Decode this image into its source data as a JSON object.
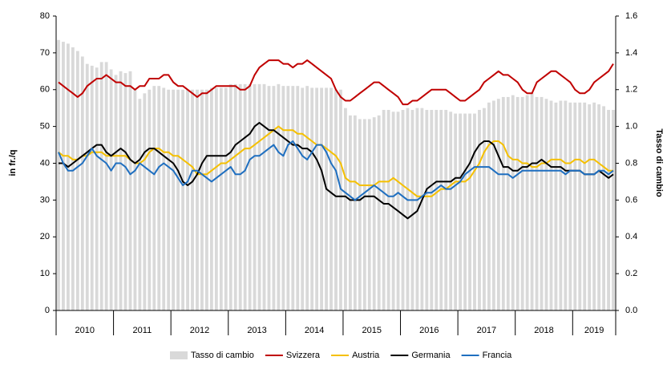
{
  "chart_data": {
    "type": "bar-line",
    "y_label": "in fr./q",
    "y2_label": "Tasso di cambio",
    "years": [
      "2010",
      "2011",
      "2012",
      "2013",
      "2014",
      "2015",
      "2016",
      "2017",
      "2018",
      "2019"
    ],
    "months_per_year": 12,
    "ylim": [
      0,
      80
    ],
    "yticks": [
      0,
      10,
      20,
      30,
      40,
      50,
      60,
      70,
      80
    ],
    "y2lim": [
      0,
      1.6
    ],
    "y2ticks": [
      {
        "value": 0,
        "label": "0.0"
      },
      0.2,
      0.4,
      0.6,
      0.8,
      {
        "value": 1,
        "label": "1.0"
      },
      1.2,
      1.4,
      1.6
    ],
    "series": [
      {
        "name": "Tasso di cambio",
        "kind": "bar",
        "axis": "y2",
        "color": "#d9d9d9",
        "values": [
          1.47,
          1.46,
          1.45,
          1.43,
          1.41,
          1.38,
          1.34,
          1.33,
          1.32,
          1.35,
          1.35,
          1.31,
          1.28,
          1.3,
          1.29,
          1.3,
          1.2,
          1.15,
          1.18,
          1.2,
          1.22,
          1.22,
          1.21,
          1.2,
          1.2,
          1.2,
          1.2,
          1.2,
          1.2,
          1.2,
          1.2,
          1.2,
          1.21,
          1.21,
          1.21,
          1.21,
          1.23,
          1.23,
          1.23,
          1.23,
          1.23,
          1.23,
          1.23,
          1.23,
          1.22,
          1.22,
          1.23,
          1.22,
          1.22,
          1.22,
          1.22,
          1.21,
          1.22,
          1.21,
          1.21,
          1.21,
          1.21,
          1.21,
          1.2,
          1.2,
          1.1,
          1.06,
          1.06,
          1.04,
          1.04,
          1.04,
          1.05,
          1.06,
          1.09,
          1.09,
          1.08,
          1.08,
          1.09,
          1.1,
          1.09,
          1.1,
          1.1,
          1.09,
          1.09,
          1.09,
          1.09,
          1.09,
          1.08,
          1.07,
          1.07,
          1.07,
          1.07,
          1.07,
          1.09,
          1.1,
          1.13,
          1.14,
          1.15,
          1.16,
          1.16,
          1.17,
          1.16,
          1.16,
          1.17,
          1.18,
          1.16,
          1.16,
          1.15,
          1.14,
          1.13,
          1.14,
          1.14,
          1.13,
          1.13,
          1.13,
          1.13,
          1.12,
          1.13,
          1.12,
          1.11,
          1.09,
          1.09
        ]
      },
      {
        "name": "Svizzera",
        "kind": "line",
        "color": "#c00000",
        "values": [
          62,
          61,
          60,
          59,
          58,
          59,
          61,
          62,
          63,
          63,
          64,
          63,
          62,
          62,
          61,
          61,
          60,
          61,
          61,
          63,
          63,
          63,
          64,
          64,
          62,
          61,
          61,
          60,
          59,
          58,
          59,
          59,
          60,
          61,
          61,
          61,
          61,
          61,
          60,
          60,
          61,
          64,
          66,
          67,
          68,
          68,
          68,
          67,
          67,
          66,
          67,
          67,
          68,
          67,
          66,
          65,
          64,
          63,
          60,
          58,
          57,
          57,
          58,
          59,
          60,
          61,
          62,
          62,
          61,
          60,
          59,
          58,
          56,
          56,
          57,
          57,
          58,
          59,
          60,
          60,
          60,
          60,
          59,
          58,
          57,
          57,
          58,
          59,
          60,
          62,
          63,
          64,
          65,
          64,
          64,
          63,
          62,
          60,
          59,
          59,
          62,
          63,
          64,
          65,
          65,
          64,
          63,
          62,
          60,
          59,
          59,
          60,
          62,
          63,
          64,
          65,
          67
        ]
      },
      {
        "name": "Austria",
        "kind": "line",
        "color": "#f5c000",
        "values": [
          43,
          42,
          42,
          41,
          41,
          42,
          42,
          43,
          43,
          43,
          42,
          42,
          42,
          42,
          42,
          41,
          40,
          40,
          41,
          43,
          44,
          44,
          43,
          43,
          42,
          42,
          41,
          40,
          39,
          37,
          37,
          37,
          38,
          39,
          40,
          40,
          41,
          42,
          43,
          44,
          44,
          45,
          46,
          47,
          48,
          49,
          50,
          49,
          49,
          49,
          48,
          48,
          47,
          46,
          45,
          45,
          44,
          43,
          42,
          40,
          36,
          35,
          35,
          34,
          34,
          34,
          34,
          35,
          35,
          35,
          36,
          35,
          34,
          33,
          32,
          31,
          31,
          31,
          31,
          32,
          33,
          33,
          34,
          35,
          35,
          35,
          36,
          38,
          40,
          43,
          45,
          46,
          46,
          45,
          42,
          41,
          41,
          40,
          40,
          39,
          39,
          40,
          40,
          41,
          41,
          41,
          40,
          40,
          41,
          41,
          40,
          41,
          41,
          40,
          39,
          38,
          38
        ]
      },
      {
        "name": "Germania",
        "kind": "line",
        "color": "#000000",
        "values": [
          40,
          40,
          39,
          40,
          41,
          42,
          43,
          44,
          45,
          45,
          43,
          42,
          43,
          44,
          43,
          41,
          40,
          41,
          43,
          44,
          44,
          43,
          42,
          41,
          40,
          38,
          35,
          34,
          35,
          37,
          40,
          42,
          42,
          42,
          42,
          42,
          43,
          45,
          46,
          47,
          48,
          50,
          51,
          50,
          49,
          49,
          48,
          47,
          46,
          45,
          45,
          44,
          44,
          43,
          41,
          38,
          33,
          32,
          31,
          31,
          31,
          30,
          30,
          30,
          31,
          31,
          31,
          30,
          29,
          29,
          28,
          27,
          26,
          25,
          26,
          27,
          30,
          33,
          34,
          35,
          35,
          35,
          35,
          36,
          36,
          38,
          40,
          43,
          45,
          46,
          46,
          45,
          42,
          39,
          39,
          38,
          38,
          39,
          39,
          40,
          40,
          41,
          40,
          39,
          39,
          39,
          38,
          38,
          38,
          38,
          37,
          37,
          37,
          38,
          37,
          36,
          37
        ]
      },
      {
        "name": "Francia",
        "kind": "line",
        "color": "#1f6fc0",
        "values": [
          43,
          40,
          38,
          38,
          39,
          40,
          42,
          44,
          42,
          41,
          40,
          38,
          40,
          40,
          39,
          37,
          38,
          40,
          39,
          38,
          37,
          39,
          40,
          39,
          38,
          36,
          34,
          35,
          38,
          38,
          37,
          36,
          35,
          36,
          37,
          38,
          39,
          37,
          37,
          38,
          41,
          42,
          42,
          43,
          44,
          45,
          43,
          42,
          45,
          46,
          44,
          42,
          41,
          43,
          45,
          45,
          43,
          40,
          38,
          33,
          32,
          31,
          30,
          31,
          32,
          33,
          34,
          33,
          32,
          31,
          31,
          32,
          31,
          30,
          30,
          30,
          31,
          32,
          32,
          33,
          34,
          33,
          33,
          34,
          35,
          37,
          38,
          39,
          39,
          39,
          39,
          38,
          37,
          37,
          37,
          36,
          37,
          38,
          38,
          38,
          38,
          38,
          38,
          38,
          38,
          38,
          37,
          38,
          38,
          38,
          37,
          37,
          37,
          38,
          38,
          37,
          38
        ]
      }
    ]
  }
}
